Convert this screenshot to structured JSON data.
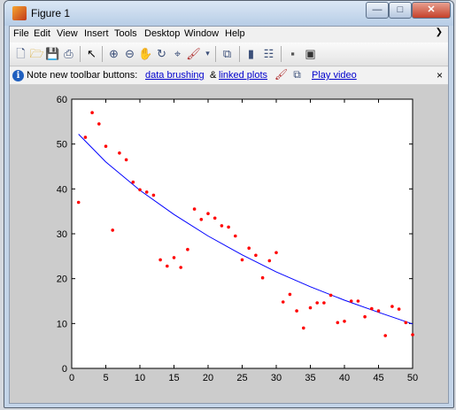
{
  "window": {
    "title": "Figure 1",
    "minimize_glyph": "—",
    "maximize_glyph": "□",
    "close_glyph": "✕"
  },
  "menu": [
    {
      "label": "File"
    },
    {
      "label": "Edit"
    },
    {
      "label": "View"
    },
    {
      "label": "Insert"
    },
    {
      "label": "Tools"
    },
    {
      "label": "Desktop"
    },
    {
      "label": "Window"
    },
    {
      "label": "Help"
    }
  ],
  "toolbar_icons": [
    "new-figure-icon",
    "open-file-icon",
    "save-icon",
    "print-icon",
    "pointer-icon",
    "zoom-in-icon",
    "zoom-out-icon",
    "pan-icon",
    "rotate-icon",
    "data-cursor-icon",
    "brush-icon",
    "link-plot-icon",
    "colorbar-icon",
    "legend-icon",
    "hide-plot-tools-icon",
    "show-plot-tools-icon"
  ],
  "infobar": {
    "text_before": "Note new toolbar buttons:",
    "link1": "data brushing",
    "amp": "&",
    "link2": "linked plots",
    "link3": "Play video",
    "close": "×"
  },
  "chart_data": {
    "type": "scatter",
    "title": "",
    "xlabel": "",
    "ylabel": "",
    "xlim": [
      0,
      50
    ],
    "ylim": [
      0,
      60
    ],
    "x_ticks": [
      0,
      5,
      10,
      15,
      20,
      25,
      30,
      35,
      40,
      45,
      50
    ],
    "y_ticks": [
      0,
      10,
      20,
      30,
      40,
      50,
      60
    ],
    "grid": false,
    "series": [
      {
        "type": "scatter",
        "color": "#ff0000",
        "points": [
          [
            1,
            37
          ],
          [
            2,
            51.5
          ],
          [
            3,
            57
          ],
          [
            4,
            54.5
          ],
          [
            5,
            49.5
          ],
          [
            6,
            30.8
          ],
          [
            7,
            48
          ],
          [
            8,
            46.5
          ],
          [
            9,
            41.5
          ],
          [
            10,
            39.8
          ],
          [
            11,
            39.3
          ],
          [
            12,
            38.6
          ],
          [
            13,
            24.2
          ],
          [
            14,
            22.8
          ],
          [
            15,
            24.7
          ],
          [
            16,
            22.5
          ],
          [
            17,
            26.5
          ],
          [
            18,
            35.5
          ],
          [
            19,
            33.2
          ],
          [
            20,
            34.5
          ],
          [
            21,
            33.5
          ],
          [
            22,
            31.8
          ],
          [
            23,
            31.5
          ],
          [
            24,
            29.5
          ],
          [
            25,
            24.2
          ],
          [
            26,
            26.8
          ],
          [
            27,
            25.2
          ],
          [
            28,
            20.2
          ],
          [
            29,
            24
          ],
          [
            30,
            25.8
          ],
          [
            31,
            14.8
          ],
          [
            32,
            16.5
          ],
          [
            33,
            12.8
          ],
          [
            34,
            9
          ],
          [
            35,
            13.5
          ],
          [
            36,
            14.6
          ],
          [
            37,
            14.6
          ],
          [
            38,
            16.3
          ],
          [
            39,
            10.2
          ],
          [
            40,
            10.5
          ],
          [
            41,
            15
          ],
          [
            42,
            15
          ],
          [
            43,
            11.5
          ],
          [
            44,
            13.3
          ],
          [
            45,
            12.8
          ],
          [
            46,
            7.3
          ],
          [
            47,
            13.8
          ],
          [
            48,
            13.2
          ],
          [
            49,
            10.2
          ],
          [
            50,
            7.5
          ]
        ]
      },
      {
        "type": "line",
        "color": "#0000ff",
        "points": [
          [
            1,
            52.2
          ],
          [
            5,
            46
          ],
          [
            10,
            39.7
          ],
          [
            15,
            34.3
          ],
          [
            20,
            29.5
          ],
          [
            25,
            25.3
          ],
          [
            30,
            21.5
          ],
          [
            35,
            18.2
          ],
          [
            40,
            15.2
          ],
          [
            45,
            12.5
          ],
          [
            50,
            9.9
          ]
        ]
      }
    ]
  }
}
